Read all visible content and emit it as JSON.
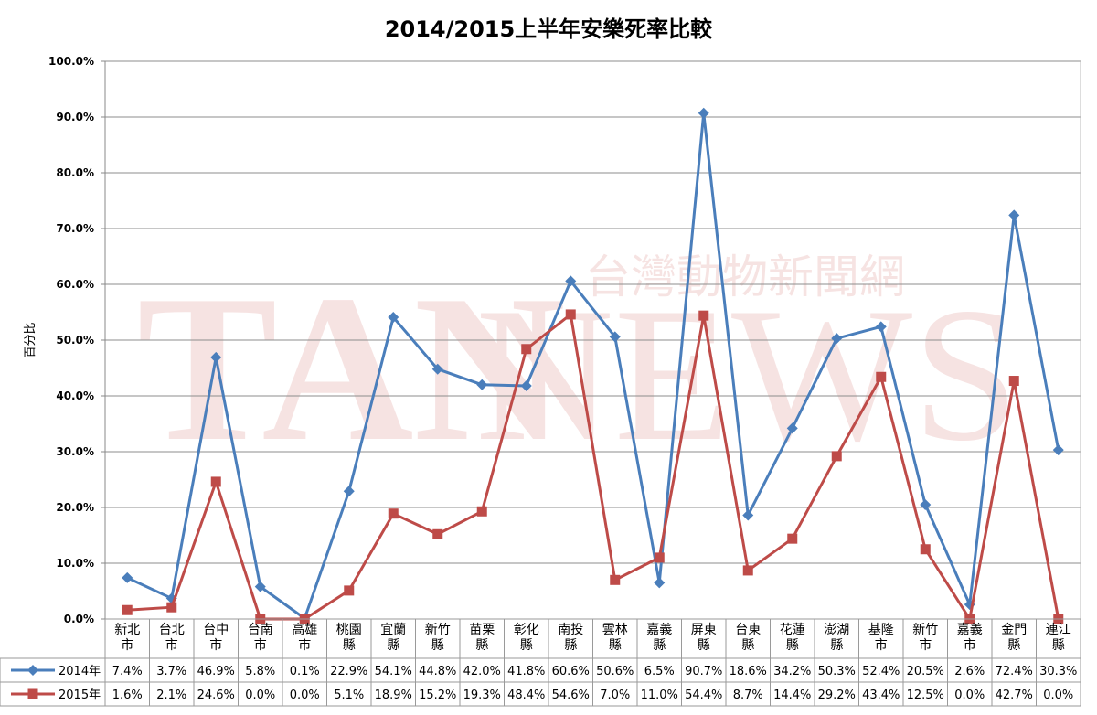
{
  "chart_data": {
    "type": "line",
    "title": "2014/2015上半年安樂死率比較",
    "ylabel": "百分比",
    "ylim": [
      0,
      100
    ],
    "yticks": [
      "0.0%",
      "10.0%",
      "20.0%",
      "30.0%",
      "40.0%",
      "50.0%",
      "60.0%",
      "70.0%",
      "80.0%",
      "90.0%",
      "100.0%"
    ],
    "grid": true,
    "legend": "bottom-left data table",
    "categories": [
      [
        "新北",
        "市"
      ],
      [
        "台北",
        "市"
      ],
      [
        "台中",
        "市"
      ],
      [
        "台南",
        "市"
      ],
      [
        "高雄",
        "市"
      ],
      [
        "桃園",
        "縣"
      ],
      [
        "宜蘭",
        "縣"
      ],
      [
        "新竹",
        "縣"
      ],
      [
        "苗栗",
        "縣"
      ],
      [
        "彰化",
        "縣"
      ],
      [
        "南投",
        "縣"
      ],
      [
        "雲林",
        "縣"
      ],
      [
        "嘉義",
        "縣"
      ],
      [
        "屏東",
        "縣"
      ],
      [
        "台東",
        "縣"
      ],
      [
        "花蓮",
        "縣"
      ],
      [
        "澎湖",
        "縣"
      ],
      [
        "基隆",
        "市"
      ],
      [
        "新竹",
        "市"
      ],
      [
        "嘉義",
        "市"
      ],
      [
        "金門",
        "縣"
      ],
      [
        "連江",
        "縣"
      ]
    ],
    "series": [
      {
        "name": "2014年",
        "color": "#4a7ebb",
        "marker": "diamond",
        "values": [
          7.4,
          3.7,
          46.9,
          5.8,
          0.1,
          22.9,
          54.1,
          44.8,
          42.0,
          41.8,
          60.6,
          50.6,
          6.5,
          90.7,
          18.6,
          34.2,
          50.3,
          52.4,
          20.5,
          2.6,
          72.4,
          30.3
        ],
        "labels": [
          "7.4%",
          "3.7%",
          "46.9%",
          "5.8%",
          "0.1%",
          "22.9%",
          "54.1%",
          "44.8%",
          "42.0%",
          "41.8%",
          "60.6%",
          "50.6%",
          "6.5%",
          "90.7%",
          "18.6%",
          "34.2%",
          "50.3%",
          "52.4%",
          "20.5%",
          "2.6%",
          "72.4%",
          "30.3%"
        ]
      },
      {
        "name": "2015年",
        "color": "#be4b48",
        "marker": "square",
        "values": [
          1.6,
          2.1,
          24.6,
          0.0,
          0.0,
          5.1,
          18.9,
          15.2,
          19.3,
          48.4,
          54.6,
          7.0,
          11.0,
          54.4,
          8.7,
          14.4,
          29.2,
          43.4,
          12.5,
          0.0,
          42.7,
          0.0
        ],
        "labels": [
          "1.6%",
          "2.1%",
          "24.6%",
          "0.0%",
          "0.0%",
          "5.1%",
          "18.9%",
          "15.2%",
          "19.3%",
          "48.4%",
          "54.6%",
          "7.0%",
          "11.0%",
          "54.4%",
          "8.7%",
          "14.4%",
          "29.2%",
          "43.4%",
          "12.5%",
          "0.0%",
          "42.7%",
          "0.0%"
        ]
      }
    ]
  },
  "watermark": {
    "logo_text": "TAN",
    "news_text": "NEWS",
    "site_name": "台灣動物新聞網"
  }
}
